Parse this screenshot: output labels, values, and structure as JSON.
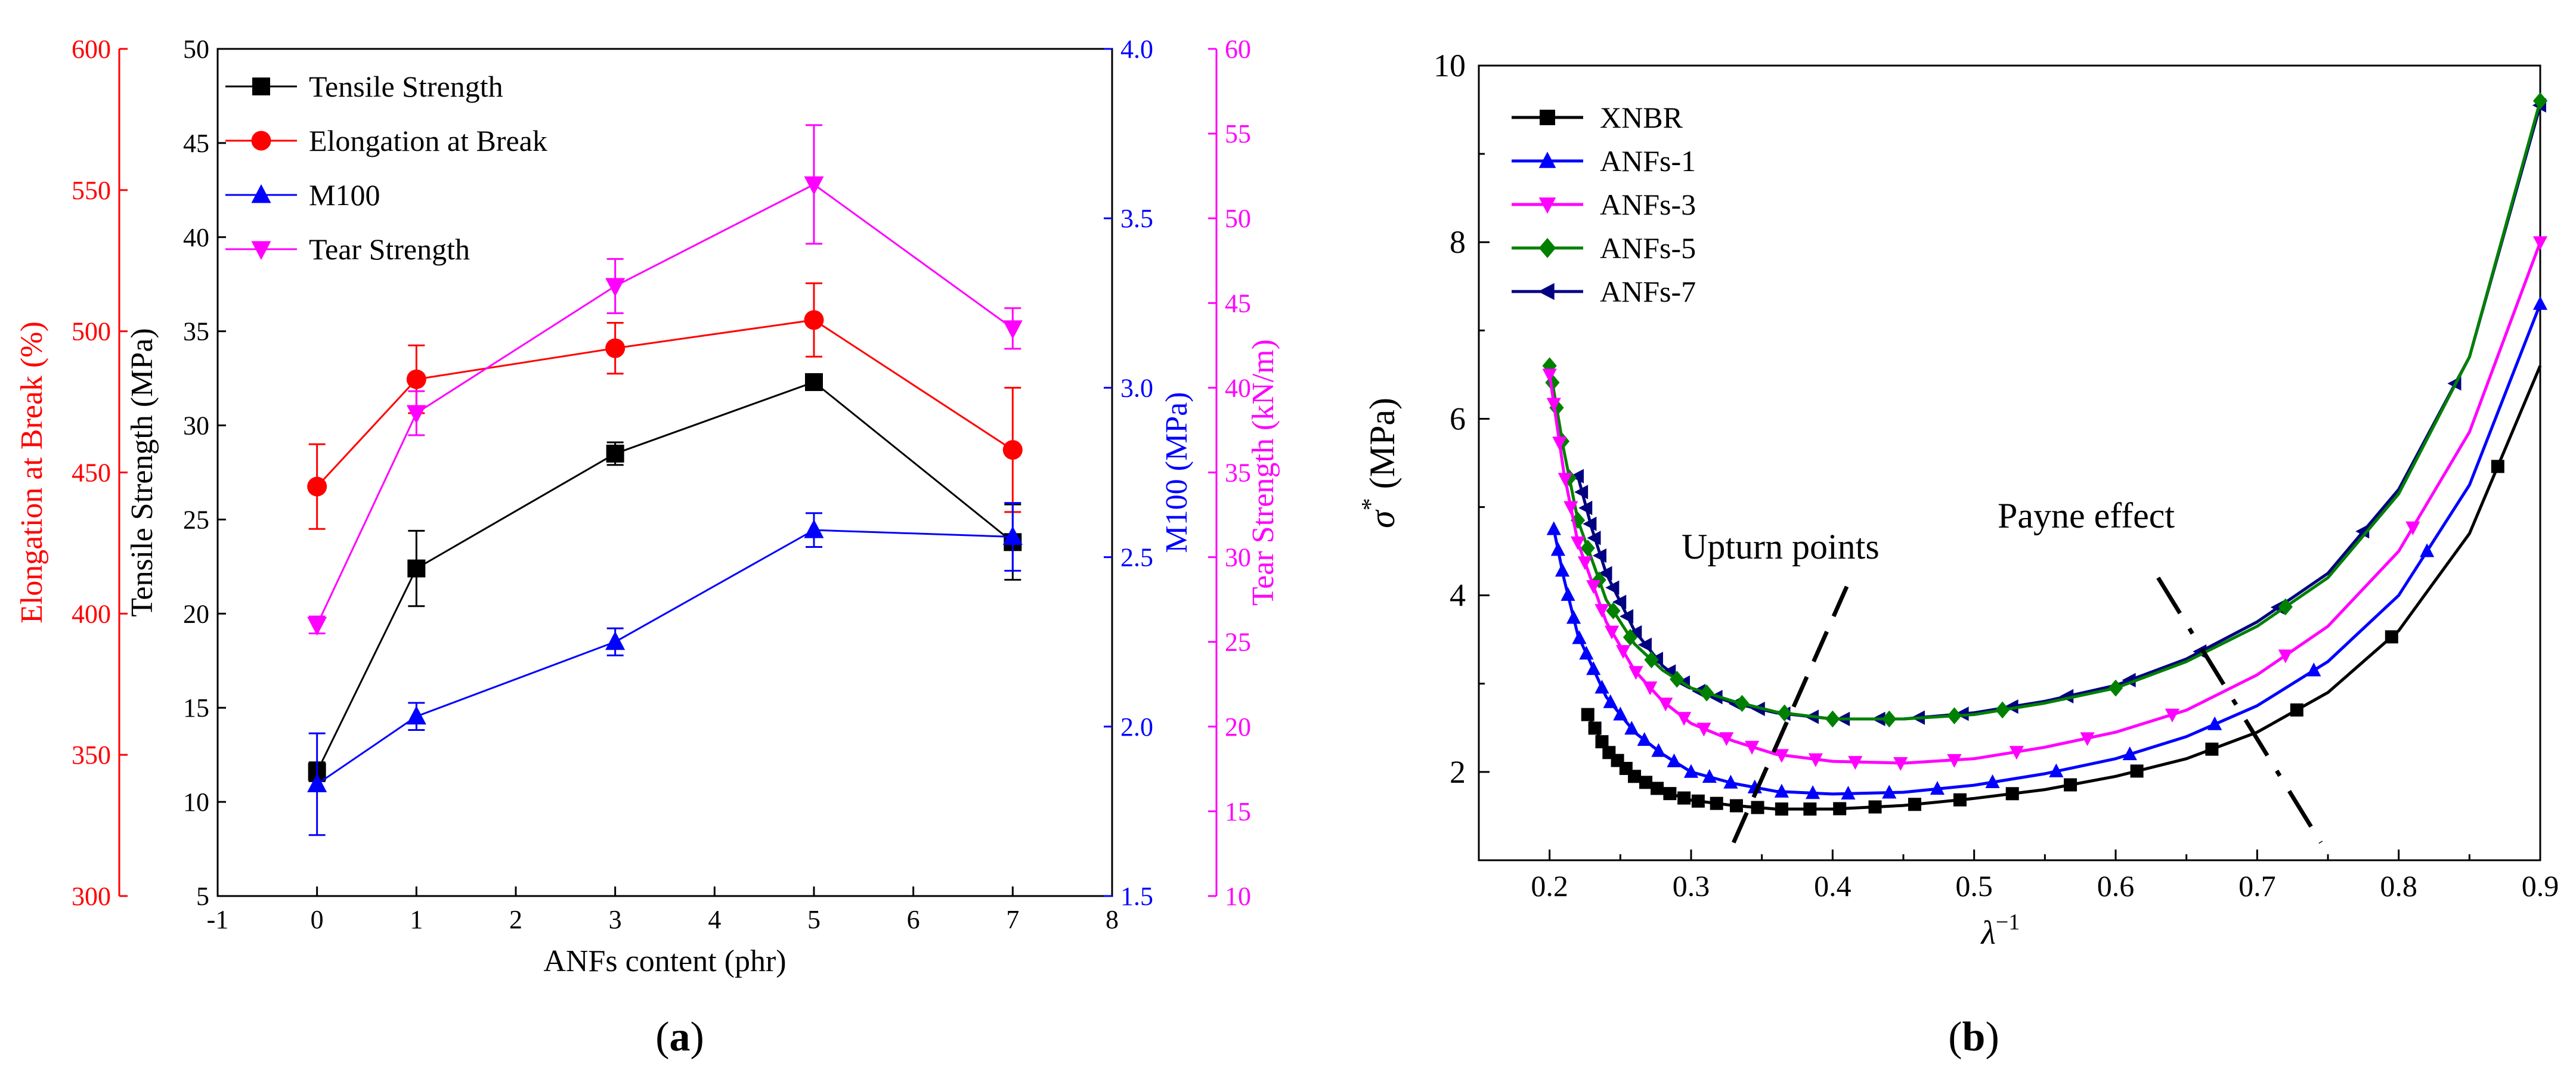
{
  "chart_data": [
    {
      "panel": "(a)",
      "type": "line",
      "xlabel": "ANFs content (phr)",
      "x_ticks": [
        "-1",
        "0",
        "1",
        "2",
        "3",
        "4",
        "5",
        "6",
        "7",
        "8"
      ],
      "xlim": [
        -1,
        8
      ],
      "axes": {
        "left_outer": {
          "label": "Elongation at Break (%)",
          "range": [
            300,
            600
          ],
          "ticks": [
            "300",
            "350",
            "400",
            "450",
            "500",
            "550",
            "600"
          ],
          "color": "#ff0000"
        },
        "left_inner": {
          "label": "Tensile Strength (MPa)",
          "range": [
            5,
            50
          ],
          "ticks": [
            "5",
            "10",
            "15",
            "20",
            "25",
            "30",
            "35",
            "40",
            "45",
            "50"
          ],
          "color": "#000000"
        },
        "right_inner": {
          "label": "M100 (MPa)",
          "range": [
            1.5,
            4.0
          ],
          "ticks": [
            "1.5",
            "2.0",
            "2.5",
            "3.0",
            "3.5",
            "4.0"
          ],
          "color": "#0000ff"
        },
        "right_outer": {
          "label": "Tear Strength (kN/m)",
          "range": [
            10,
            60
          ],
          "ticks": [
            "10",
            "15",
            "20",
            "25",
            "30",
            "35",
            "40",
            "45",
            "50",
            "55",
            "60"
          ],
          "color": "#ff00ff"
        }
      },
      "series": [
        {
          "name": "Tensile Strength",
          "axis": "left_inner",
          "color": "#000000",
          "marker": "square",
          "x": [
            0,
            1,
            3,
            5,
            7
          ],
          "values": [
            11.6,
            22.4,
            28.5,
            32.3,
            23.8
          ],
          "errors": [
            0.5,
            2.0,
            0.6,
            0.4,
            2.0
          ]
        },
        {
          "name": "Elongation at Break",
          "axis": "left_outer",
          "color": "#ff0000",
          "marker": "circle",
          "x": [
            0,
            1,
            3,
            5,
            7
          ],
          "values": [
            445,
            483,
            494,
            504,
            458
          ],
          "errors": [
            15,
            12,
            9,
            13,
            22
          ]
        },
        {
          "name": "M100",
          "axis": "right_inner",
          "color": "#0000ff",
          "marker": "triangle-up",
          "x": [
            0,
            1,
            3,
            5,
            7
          ],
          "values": [
            1.83,
            2.03,
            2.25,
            2.58,
            2.56
          ],
          "errors": [
            0.15,
            0.04,
            0.04,
            0.05,
            0.1
          ]
        },
        {
          "name": "Tear Strength",
          "axis": "right_outer",
          "color": "#ff00ff",
          "marker": "triangle-down",
          "x": [
            0,
            1,
            3,
            5,
            7
          ],
          "values": [
            26,
            38.5,
            46,
            52,
            43.5
          ],
          "errors": [
            0.5,
            1.3,
            1.6,
            3.5,
            1.2
          ]
        }
      ]
    },
    {
      "panel": "(b)",
      "type": "line",
      "xlabel": "λ",
      "xlabel_sup": "−1",
      "ylabel": "σ",
      "ylabel_sup": "*",
      "ylabel_unit": " (MPa)",
      "xlim": [
        0.15,
        0.9
      ],
      "ylim": [
        1,
        10
      ],
      "x_ticks": [
        "0.2",
        "0.3",
        "0.4",
        "0.5",
        "0.6",
        "0.7",
        "0.8",
        "0.9"
      ],
      "y_ticks": [
        "2",
        "4",
        "6",
        "8",
        "10"
      ],
      "annotations": [
        {
          "text": "Upturn points",
          "line_from": [
            0.33,
            1.2
          ],
          "line_to": [
            0.41,
            4.1
          ]
        },
        {
          "text": "Payne effect",
          "line_from": [
            0.63,
            4.2
          ],
          "line_to": [
            0.745,
            1.2
          ]
        }
      ],
      "series": [
        {
          "name": "XNBR",
          "color": "#000000",
          "marker": "square",
          "curve": [
            [
              0.227,
              2.65
            ],
            [
              0.24,
              2.25
            ],
            [
              0.26,
              1.95
            ],
            [
              0.28,
              1.78
            ],
            [
              0.3,
              1.68
            ],
            [
              0.33,
              1.62
            ],
            [
              0.36,
              1.58
            ],
            [
              0.4,
              1.58
            ],
            [
              0.45,
              1.62
            ],
            [
              0.5,
              1.7
            ],
            [
              0.55,
              1.8
            ],
            [
              0.6,
              1.95
            ],
            [
              0.65,
              2.15
            ],
            [
              0.7,
              2.45
            ],
            [
              0.75,
              2.9
            ],
            [
              0.8,
              3.6
            ],
            [
              0.85,
              4.7
            ],
            [
              0.9,
              6.6
            ]
          ],
          "marker_x": [
            0.227,
            0.232,
            0.237,
            0.242,
            0.248,
            0.254,
            0.26,
            0.268,
            0.276,
            0.285,
            0.295,
            0.305,
            0.318,
            0.332,
            0.347,
            0.364,
            0.384,
            0.405,
            0.43,
            0.458,
            0.49,
            0.527,
            0.568,
            0.615,
            0.668,
            0.728,
            0.795,
            0.87
          ]
        },
        {
          "name": "ANFs-1",
          "color": "#0000ff",
          "marker": "triangle-up",
          "curve": [
            [
              0.203,
              4.75
            ],
            [
              0.21,
              4.2
            ],
            [
              0.22,
              3.55
            ],
            [
              0.24,
              2.85
            ],
            [
              0.26,
              2.45
            ],
            [
              0.28,
              2.2
            ],
            [
              0.3,
              2.0
            ],
            [
              0.33,
              1.87
            ],
            [
              0.36,
              1.78
            ],
            [
              0.4,
              1.75
            ],
            [
              0.45,
              1.77
            ],
            [
              0.5,
              1.85
            ],
            [
              0.55,
              1.98
            ],
            [
              0.6,
              2.15
            ],
            [
              0.65,
              2.4
            ],
            [
              0.7,
              2.75
            ],
            [
              0.75,
              3.25
            ],
            [
              0.8,
              4.0
            ],
            [
              0.85,
              5.25
            ],
            [
              0.9,
              7.3
            ]
          ],
          "marker_x": [
            0.203,
            0.206,
            0.209,
            0.213,
            0.217,
            0.221,
            0.226,
            0.231,
            0.237,
            0.243,
            0.25,
            0.258,
            0.267,
            0.277,
            0.288,
            0.3,
            0.313,
            0.328,
            0.345,
            0.364,
            0.386,
            0.411,
            0.44,
            0.474,
            0.513,
            0.558,
            0.61,
            0.67,
            0.74,
            0.82,
            0.9
          ]
        },
        {
          "name": "ANFs-3",
          "color": "#ff00ff",
          "marker": "triangle-down",
          "curve": [
            [
              0.2,
              6.5
            ],
            [
              0.21,
              5.4
            ],
            [
              0.22,
              4.6
            ],
            [
              0.24,
              3.7
            ],
            [
              0.26,
              3.15
            ],
            [
              0.28,
              2.8
            ],
            [
              0.3,
              2.55
            ],
            [
              0.33,
              2.35
            ],
            [
              0.36,
              2.2
            ],
            [
              0.4,
              2.12
            ],
            [
              0.45,
              2.1
            ],
            [
              0.5,
              2.15
            ],
            [
              0.55,
              2.28
            ],
            [
              0.6,
              2.45
            ],
            [
              0.65,
              2.7
            ],
            [
              0.7,
              3.1
            ],
            [
              0.75,
              3.65
            ],
            [
              0.8,
              4.5
            ],
            [
              0.85,
              5.85
            ],
            [
              0.9,
              8.0
            ]
          ],
          "marker_x": [
            0.2,
            0.203,
            0.207,
            0.211,
            0.215,
            0.22,
            0.225,
            0.231,
            0.237,
            0.244,
            0.252,
            0.261,
            0.271,
            0.282,
            0.295,
            0.309,
            0.325,
            0.343,
            0.364,
            0.388,
            0.416,
            0.448,
            0.486,
            0.53,
            0.58,
            0.64,
            0.72,
            0.81,
            0.9
          ]
        },
        {
          "name": "ANFs-5",
          "color": "#008000",
          "marker": "diamond",
          "curve": [
            [
              0.2,
              6.6
            ],
            [
              0.21,
              5.65
            ],
            [
              0.22,
              4.85
            ],
            [
              0.24,
              3.95
            ],
            [
              0.26,
              3.45
            ],
            [
              0.28,
              3.15
            ],
            [
              0.3,
              2.95
            ],
            [
              0.33,
              2.8
            ],
            [
              0.36,
              2.68
            ],
            [
              0.4,
              2.6
            ],
            [
              0.45,
              2.6
            ],
            [
              0.5,
              2.65
            ],
            [
              0.55,
              2.78
            ],
            [
              0.6,
              2.95
            ],
            [
              0.65,
              3.25
            ],
            [
              0.7,
              3.65
            ],
            [
              0.75,
              4.2
            ],
            [
              0.8,
              5.15
            ],
            [
              0.85,
              6.7
            ],
            [
              0.9,
              9.6
            ]
          ],
          "marker_x": [
            0.2,
            0.202,
            0.205,
            0.209,
            0.214,
            0.22,
            0.227,
            0.235,
            0.245,
            0.257,
            0.272,
            0.29,
            0.311,
            0.336,
            0.366,
            0.4,
            0.44,
            0.486,
            0.52,
            0.6,
            0.72,
            0.9
          ]
        },
        {
          "name": "ANFs-7",
          "color": "#000080",
          "marker": "triangle-left",
          "curve": [
            [
              0.22,
              5.35
            ],
            [
              0.23,
              4.75
            ],
            [
              0.24,
              4.25
            ],
            [
              0.26,
              3.6
            ],
            [
              0.28,
              3.2
            ],
            [
              0.3,
              2.95
            ],
            [
              0.33,
              2.78
            ],
            [
              0.36,
              2.67
            ],
            [
              0.4,
              2.6
            ],
            [
              0.45,
              2.6
            ],
            [
              0.5,
              2.67
            ],
            [
              0.55,
              2.8
            ],
            [
              0.6,
              2.98
            ],
            [
              0.65,
              3.28
            ],
            [
              0.7,
              3.7
            ],
            [
              0.75,
              4.25
            ],
            [
              0.8,
              5.2
            ],
            [
              0.85,
              6.7
            ],
            [
              0.9,
              9.55
            ]
          ],
          "marker_x": [
            0.22,
            0.223,
            0.226,
            0.229,
            0.232,
            0.236,
            0.24,
            0.245,
            0.25,
            0.255,
            0.261,
            0.268,
            0.276,
            0.285,
            0.295,
            0.306,
            0.318,
            0.332,
            0.348,
            0.366,
            0.386,
            0.408,
            0.433,
            0.461,
            0.492,
            0.527,
            0.566,
            0.61,
            0.66,
            0.715,
            0.775,
            0.84,
            0.9
          ]
        }
      ]
    }
  ]
}
